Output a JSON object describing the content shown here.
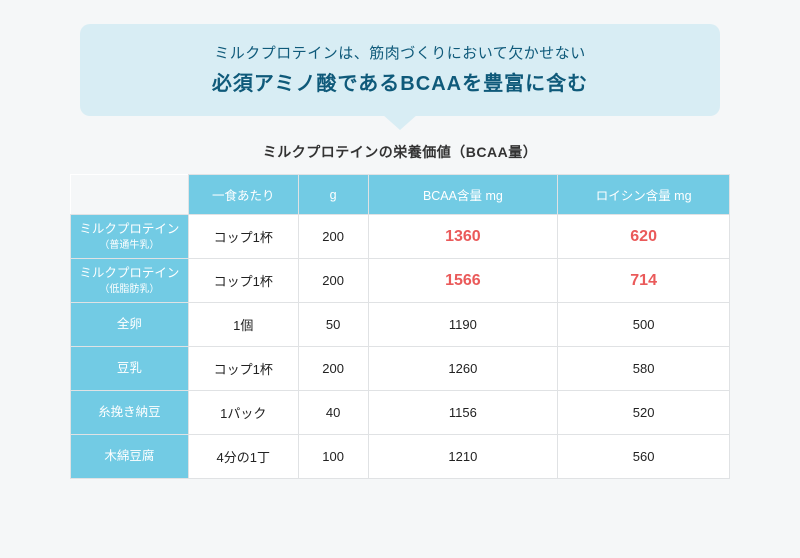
{
  "banner": {
    "line1": "ミルクプロテインは、筋肉づくりにおいて欠かせない",
    "line2": "必須アミノ酸であるBCAAを豊富に含む"
  },
  "subtitle": "ミルクプロテインの栄養価値（BCAA量）",
  "table": {
    "headers": {
      "serving": "一食あたり",
      "grams": "g",
      "bcaa": "BCAA含量 mg",
      "leucine": "ロイシン含量 mg"
    },
    "rows": [
      {
        "name": "ミルクプロテイン",
        "sub": "（普通牛乳）",
        "serving": "コップ1杯",
        "grams": "200",
        "bcaa": "1360",
        "leucine": "620",
        "highlight": true
      },
      {
        "name": "ミルクプロテイン",
        "sub": "（低脂肪乳）",
        "serving": "コップ1杯",
        "grams": "200",
        "bcaa": "1566",
        "leucine": "714",
        "highlight": true
      },
      {
        "name": "全卵",
        "sub": "",
        "serving": "1個",
        "grams": "50",
        "bcaa": "1190",
        "leucine": "500",
        "highlight": false
      },
      {
        "name": "豆乳",
        "sub": "",
        "serving": "コップ1杯",
        "grams": "200",
        "bcaa": "1260",
        "leucine": "580",
        "highlight": false
      },
      {
        "name": "糸挽き納豆",
        "sub": "",
        "serving": "1パック",
        "grams": "40",
        "bcaa": "1156",
        "leucine": "520",
        "highlight": false
      },
      {
        "name": "木綿豆腐",
        "sub": "",
        "serving": "4分の1丁",
        "grams": "100",
        "bcaa": "1210",
        "leucine": "560",
        "highlight": false
      }
    ]
  },
  "style": {
    "banner_bg": "#d8edf4",
    "banner_text": "#0f5a7a",
    "header_bg": "#72cbe4",
    "header_text": "#ffffff",
    "highlight_color": "#ea5a5a",
    "page_bg": "#f5f7f8",
    "cell_bg": "#ffffff",
    "border_color": "#e0e2e4"
  }
}
